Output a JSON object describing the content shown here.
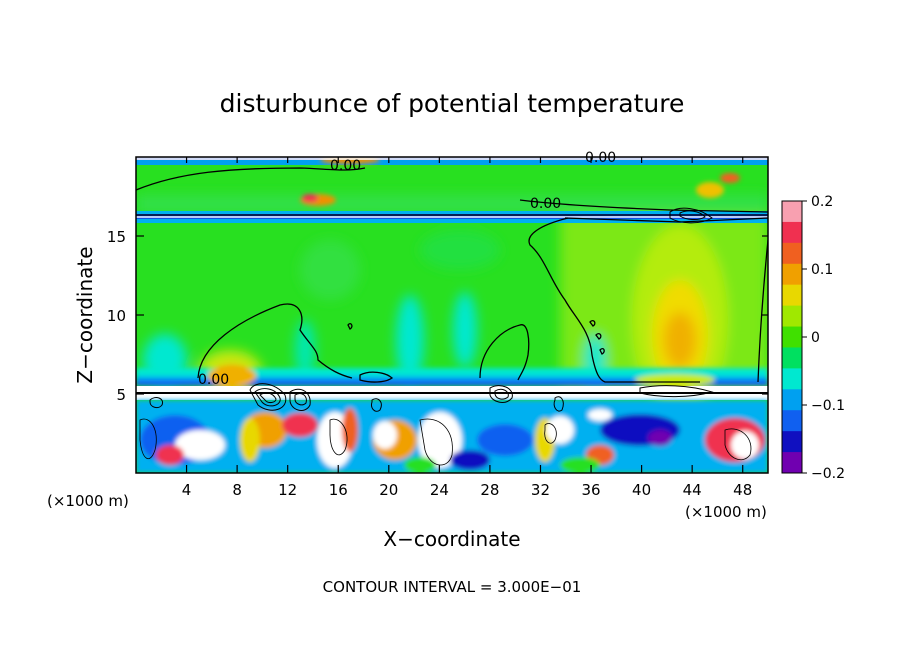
{
  "chart_data": {
    "type": "heatmap",
    "title": "disturbunce of potential temperature",
    "xlabel": "X−coordinate",
    "ylabel": "Z−coordinate",
    "x_unit_left": "(×1000 m)",
    "x_unit_right": "(×1000 m)",
    "xlim": [
      0,
      50
    ],
    "ylim": [
      0,
      20
    ],
    "x_ticks": [
      4,
      8,
      12,
      16,
      20,
      24,
      28,
      32,
      36,
      40,
      44,
      48
    ],
    "y_ticks": [
      5,
      10,
      15
    ],
    "colorbar": {
      "min": -0.2,
      "max": 0.2,
      "ticks": [
        "0.2",
        "0.1",
        "0",
        "−0.1",
        "−0.2"
      ],
      "tick_values": [
        0.2,
        0.1,
        0,
        -0.1,
        -0.2
      ],
      "colors": [
        "#f8a0b0",
        "#f03050",
        "#f06020",
        "#f0a000",
        "#e8d800",
        "#a0e800",
        "#40e000",
        "#00e060",
        "#00e8d0",
        "#00a0f0",
        "#1060f0",
        "#1010c0",
        "#7000b0"
      ]
    },
    "contour_labels": [
      "0.00",
      "0.00",
      "0.00",
      "0.00"
    ],
    "contour_interval_text": "CONTOUR INTERVAL = 3.000E−01"
  }
}
